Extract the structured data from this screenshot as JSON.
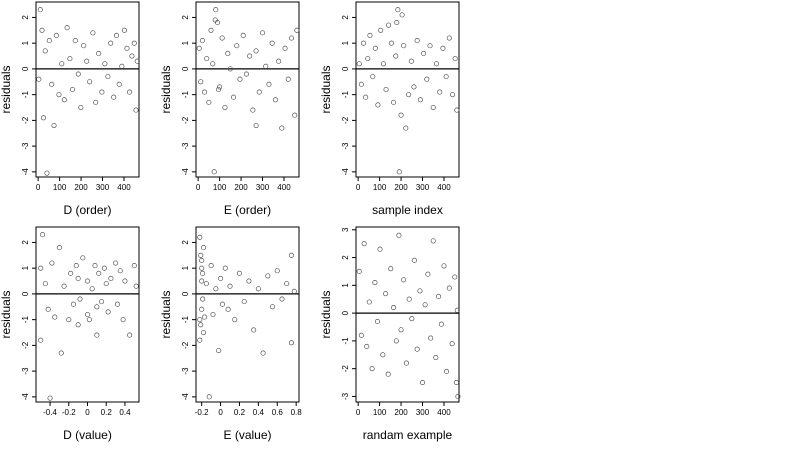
{
  "chart_data": [
    {
      "type": "scatter",
      "xlabel": "D (order)",
      "ylabel": "residuals",
      "xlim": [
        -10,
        470
      ],
      "ylim": [
        -4.2,
        2.6
      ],
      "xticks": [
        0,
        100,
        200,
        300,
        400
      ],
      "yticks": [
        -4,
        -3,
        -2,
        -1,
        0,
        1,
        2
      ],
      "reference_line": 0,
      "grid": false,
      "x": [
        3,
        10,
        18,
        25,
        33,
        41,
        52,
        63,
        74,
        85,
        97,
        110,
        122,
        135,
        148,
        160,
        173,
        187,
        199,
        212,
        226,
        240,
        255,
        268,
        282,
        297,
        311,
        325,
        338,
        352,
        365,
        378,
        390,
        402,
        414,
        426,
        437,
        448,
        456,
        462
      ],
      "y": [
        -0.4,
        2.3,
        1.5,
        -1.9,
        0.7,
        -4.05,
        1.1,
        -0.6,
        -2.2,
        1.3,
        -1.0,
        0.2,
        -1.2,
        1.6,
        0.4,
        -0.8,
        1.1,
        -0.2,
        -1.5,
        0.9,
        0.3,
        -0.5,
        1.4,
        -1.3,
        0.6,
        -0.9,
        0.2,
        -0.3,
        1.0,
        -1.1,
        1.3,
        -0.6,
        0.1,
        1.5,
        0.8,
        -0.9,
        0.5,
        1.0,
        -1.6,
        0.3
      ]
    },
    {
      "type": "scatter",
      "xlabel": "E (order)",
      "ylabel": "residuals",
      "xlim": [
        -10,
        470
      ],
      "ylim": [
        -4.2,
        2.6
      ],
      "xticks": [
        0,
        100,
        200,
        300,
        400
      ],
      "yticks": [
        -4,
        -3,
        -2,
        -1,
        0,
        1,
        2
      ],
      "reference_line": 0,
      "grid": false,
      "x": [
        5,
        12,
        20,
        30,
        40,
        50,
        60,
        68,
        75,
        82,
        90,
        100,
        112,
        125,
        138,
        150,
        165,
        180,
        195,
        210,
        225,
        240,
        255,
        270,
        285,
        300,
        315,
        330,
        345,
        360,
        375,
        390,
        405,
        420,
        435,
        450,
        460,
        80,
        95,
        270
      ],
      "y": [
        0.8,
        -0.5,
        1.1,
        -0.9,
        0.4,
        -1.3,
        1.5,
        0.2,
        -4.0,
        2.3,
        1.8,
        -0.7,
        1.2,
        -1.5,
        0.6,
        0.0,
        -1.1,
        0.9,
        -0.4,
        1.3,
        -0.2,
        0.5,
        -1.6,
        0.7,
        -0.9,
        1.4,
        0.1,
        -0.6,
        1.0,
        -1.2,
        0.3,
        -2.3,
        0.8,
        -0.4,
        1.2,
        -1.8,
        1.5,
        1.9,
        -0.8,
        -2.2
      ]
    },
    {
      "type": "scatter",
      "xlabel": "sample index",
      "ylabel": "residuals",
      "xlim": [
        -10,
        470
      ],
      "ylim": [
        -4.2,
        2.6
      ],
      "xticks": [
        0,
        100,
        200,
        300,
        400
      ],
      "yticks": [
        -4,
        -3,
        -2,
        -1,
        0,
        1,
        2
      ],
      "reference_line": 0,
      "grid": false,
      "x": [
        5,
        15,
        25,
        35,
        45,
        55,
        68,
        80,
        92,
        105,
        118,
        130,
        142,
        155,
        165,
        175,
        185,
        192,
        200,
        205,
        212,
        222,
        235,
        248,
        260,
        275,
        290,
        305,
        320,
        335,
        350,
        365,
        380,
        395,
        410,
        425,
        440,
        452,
        460,
        180
      ],
      "y": [
        0.2,
        -0.6,
        1.0,
        -1.1,
        0.4,
        1.3,
        -0.3,
        0.8,
        -1.4,
        1.5,
        0.2,
        -0.8,
        1.7,
        1.0,
        -1.3,
        0.5,
        2.3,
        -4.0,
        -1.8,
        2.1,
        0.9,
        -2.3,
        -1.0,
        0.3,
        -0.7,
        1.1,
        -1.2,
        0.6,
        -0.4,
        0.9,
        -1.5,
        0.2,
        -0.9,
        0.8,
        -0.3,
        1.2,
        -1.0,
        0.4,
        -1.6,
        1.8
      ]
    },
    {
      "type": "scatter",
      "xlabel": "D (value)",
      "ylabel": "residuals",
      "xlim": [
        -0.55,
        0.55
      ],
      "ylim": [
        -4.2,
        2.6
      ],
      "xticks": [
        -0.4,
        -0.2,
        0.0,
        0.2,
        0.4
      ],
      "yticks": [
        -4,
        -3,
        -2,
        -1,
        0,
        1,
        2
      ],
      "reference_line": 0,
      "grid": false,
      "x": [
        -0.5,
        -0.5,
        -0.48,
        -0.45,
        -0.42,
        -0.4,
        -0.38,
        -0.35,
        -0.3,
        -0.28,
        -0.25,
        -0.2,
        -0.18,
        -0.15,
        -0.12,
        -0.1,
        -0.1,
        -0.08,
        -0.05,
        0.0,
        0.0,
        0.02,
        0.05,
        0.08,
        0.1,
        0.1,
        0.12,
        0.15,
        0.18,
        0.2,
        0.22,
        0.25,
        0.3,
        0.32,
        0.35,
        0.38,
        0.4,
        0.45,
        0.5,
        0.52
      ],
      "y": [
        1.0,
        -1.8,
        2.3,
        0.4,
        -0.6,
        -4.05,
        1.2,
        -0.9,
        1.8,
        -2.3,
        0.3,
        -1.0,
        0.8,
        -0.4,
        1.1,
        -1.2,
        0.6,
        -0.2,
        1.4,
        -0.8,
        0.5,
        -1.0,
        0.2,
        1.1,
        -1.6,
        -0.5,
        0.8,
        -0.3,
        1.0,
        0.4,
        -0.7,
        0.6,
        1.2,
        -0.4,
        0.9,
        -1.0,
        0.5,
        -1.6,
        1.1,
        0.3
      ]
    },
    {
      "type": "scatter",
      "xlabel": "E (value)",
      "ylabel": "residuals",
      "xlim": [
        -0.26,
        0.83
      ],
      "ylim": [
        -4.2,
        2.6
      ],
      "xticks": [
        -0.2,
        0.0,
        0.2,
        0.4,
        0.6,
        0.8
      ],
      "yticks": [
        -4,
        -3,
        -2,
        -1,
        0,
        1,
        2
      ],
      "reference_line": 0,
      "grid": false,
      "x": [
        -0.22,
        -0.22,
        -0.21,
        -0.21,
        -0.2,
        -0.2,
        -0.2,
        -0.19,
        -0.19,
        -0.18,
        -0.18,
        -0.17,
        -0.15,
        -0.12,
        -0.1,
        -0.08,
        -0.05,
        -0.02,
        0.0,
        0.02,
        0.05,
        0.08,
        0.1,
        0.15,
        0.2,
        0.25,
        0.3,
        0.35,
        0.4,
        0.45,
        0.5,
        0.55,
        0.6,
        0.65,
        0.7,
        0.75,
        0.75,
        0.78,
        -0.22,
        -0.2
      ],
      "y": [
        2.2,
        -1.8,
        1.5,
        -1.2,
        1.0,
        -0.6,
        0.5,
        -0.2,
        0.8,
        -1.5,
        1.8,
        -0.9,
        0.4,
        -4.0,
        1.1,
        -0.8,
        0.2,
        -2.2,
        0.6,
        -0.4,
        1.0,
        -0.6,
        0.3,
        -1.0,
        0.8,
        -0.3,
        0.5,
        -1.4,
        0.2,
        -2.3,
        0.7,
        -0.5,
        0.9,
        -0.2,
        0.4,
        1.5,
        -1.9,
        0.1,
        -1.0,
        1.3
      ]
    },
    {
      "type": "scatter",
      "xlabel": "randam example",
      "ylabel": "residuals",
      "xlim": [
        -10,
        470
      ],
      "ylim": [
        -3.2,
        3.1
      ],
      "xticks": [
        0,
        100,
        200,
        300,
        400
      ],
      "yticks": [
        -3,
        -2,
        -1,
        0,
        1,
        2,
        3
      ],
      "reference_line": 0,
      "grid": false,
      "x": [
        5,
        15,
        28,
        40,
        52,
        65,
        78,
        90,
        102,
        115,
        128,
        140,
        152,
        165,
        178,
        190,
        200,
        212,
        225,
        238,
        250,
        262,
        275,
        288,
        300,
        312,
        325,
        338,
        350,
        362,
        375,
        388,
        400,
        412,
        425,
        438,
        450,
        458,
        462,
        465
      ],
      "y": [
        1.5,
        -0.8,
        2.5,
        -1.2,
        0.4,
        -2.0,
        1.1,
        -0.3,
        2.3,
        -1.5,
        0.7,
        -2.2,
        1.6,
        0.2,
        -1.0,
        2.8,
        -0.6,
        1.2,
        -1.8,
        0.5,
        -0.2,
        1.9,
        -1.3,
        0.8,
        -2.5,
        0.3,
        1.4,
        -0.9,
        2.6,
        -1.6,
        0.6,
        -0.4,
        1.7,
        -2.1,
        0.9,
        -1.1,
        1.3,
        -2.5,
        0.1,
        -3.0
      ]
    }
  ]
}
